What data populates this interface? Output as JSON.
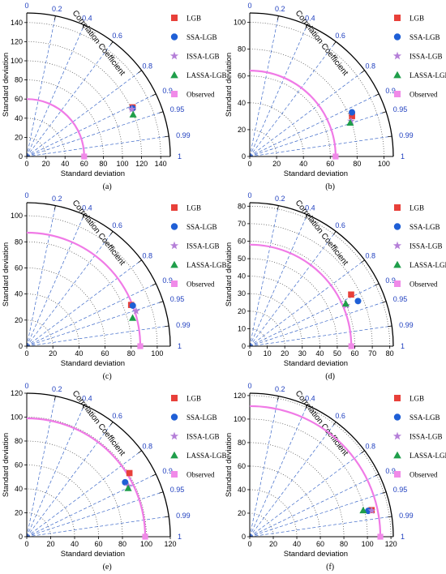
{
  "chart_data": [
    {
      "type": "taylor",
      "panel_label": "(a)",
      "xlabel": "Standard deviation",
      "ylabel": "Standard deviation",
      "radial_title": "Correlation Coefficient",
      "rmax": 150,
      "ticks": [
        0,
        20,
        40,
        60,
        80,
        100,
        120,
        140
      ],
      "correlation_ticks": [
        "0",
        "0.2",
        "0.4",
        "0.6",
        "0.8",
        "0.9",
        "0.95",
        "0.99",
        "1"
      ],
      "observed_std": 60,
      "series": [
        {
          "name": "LGB",
          "std": 122,
          "corr": 0.907
        },
        {
          "name": "SSA-LGB",
          "std": 121.5,
          "corr": 0.91
        },
        {
          "name": "ISSA-LGB",
          "std": 120.5,
          "corr": 0.912
        },
        {
          "name": "LASSA-LGB",
          "std": 119.5,
          "corr": 0.93
        },
        {
          "name": "Observed",
          "std": 60,
          "corr": 1
        }
      ]
    },
    {
      "type": "taylor",
      "panel_label": "(b)",
      "xlabel": "Standard deviation",
      "ylabel": "Standard deviation",
      "radial_title": "Correlation Coefficient",
      "rmax": 107,
      "ticks": [
        0,
        20,
        40,
        60,
        80,
        100
      ],
      "correlation_ticks": [
        "0",
        "0.2",
        "0.4",
        "0.6",
        "0.8",
        "0.9",
        "0.95",
        "0.99",
        "1"
      ],
      "observed_std": 64,
      "series": [
        {
          "name": "LGB",
          "std": 82,
          "corr": 0.93
        },
        {
          "name": "SSA-LGB",
          "std": 83,
          "corr": 0.918
        },
        {
          "name": "ISSA-LGB",
          "std": 80,
          "corr": 0.944
        },
        {
          "name": "LASSA-LGB",
          "std": 79,
          "corr": 0.948
        },
        {
          "name": "Observed",
          "std": 64,
          "corr": 1
        }
      ]
    },
    {
      "type": "taylor",
      "panel_label": "(c)",
      "xlabel": "Standard deviation",
      "ylabel": "Standard deviation",
      "radial_title": "Correlation Coefficient",
      "rmax": 110,
      "ticks": [
        0,
        20,
        40,
        60,
        80,
        100
      ],
      "correlation_ticks": [
        "0",
        "0.2",
        "0.4",
        "0.6",
        "0.8",
        "0.9",
        "0.95",
        "0.99",
        "1"
      ],
      "observed_std": 87,
      "series": [
        {
          "name": "LGB",
          "std": 86,
          "corr": 0.93
        },
        {
          "name": "SSA-LGB",
          "std": 87,
          "corr": 0.934
        },
        {
          "name": "ISSA-LGB",
          "std": 88,
          "corr": 0.952
        },
        {
          "name": "LASSA-LGB",
          "std": 84,
          "corr": 0.966
        },
        {
          "name": "Observed",
          "std": 87,
          "corr": 1
        }
      ]
    },
    {
      "type": "taylor",
      "panel_label": "(d)",
      "xlabel": "Standard deviation",
      "ylabel": "Standard deviation",
      "radial_title": "Correlation Coefficient",
      "rmax": 82,
      "ticks": [
        0,
        10,
        20,
        30,
        40,
        50,
        60,
        70,
        80
      ],
      "correlation_ticks": [
        "0",
        "0.2",
        "0.4",
        "0.6",
        "0.8",
        "0.9",
        "0.95",
        "0.99",
        "1"
      ],
      "observed_std": 58,
      "series": [
        {
          "name": "LGB",
          "std": 65,
          "corr": 0.891
        },
        {
          "name": "SSA-LGB",
          "std": 67,
          "corr": 0.923
        },
        {
          "name": "ISSA-LGB",
          "std": 60,
          "corr": 0.921
        },
        {
          "name": "LASSA-LGB",
          "std": 60,
          "corr": 0.914
        },
        {
          "name": "Observed",
          "std": 58,
          "corr": 1
        }
      ]
    },
    {
      "type": "taylor",
      "panel_label": "(e)",
      "xlabel": "Standard deviation",
      "ylabel": "Standard deviation",
      "radial_title": "Correlation Coefficient",
      "rmax": 120,
      "ticks": [
        0,
        20,
        40,
        60,
        80,
        100,
        120
      ],
      "correlation_ticks": [
        "0",
        "0.2",
        "0.4",
        "0.6",
        "0.8",
        "0.9",
        "0.95",
        "0.99",
        "1"
      ],
      "observed_std": 99,
      "series": [
        {
          "name": "LGB",
          "std": 101,
          "corr": 0.85
        },
        {
          "name": "SSA-LGB",
          "std": 94,
          "corr": 0.875
        },
        {
          "name": "ISSA-LGB",
          "std": 95,
          "corr": 0.895
        },
        {
          "name": "LASSA-LGB",
          "std": 94,
          "corr": 0.902
        },
        {
          "name": "Observed",
          "std": 99,
          "corr": 1
        }
      ]
    },
    {
      "type": "taylor",
      "panel_label": "(f)",
      "xlabel": "Standard deviation",
      "ylabel": "Standard deviation",
      "radial_title": "Correlation Coefficient",
      "rmax": 122,
      "ticks": [
        0,
        20,
        40,
        60,
        80,
        100,
        120
      ],
      "correlation_ticks": [
        "0",
        "0.2",
        "0.4",
        "0.6",
        "0.8",
        "0.9",
        "0.95",
        "0.99",
        "1"
      ],
      "observed_std": 111,
      "series": [
        {
          "name": "LGB",
          "std": 106,
          "corr": 0.977
        },
        {
          "name": "SSA-LGB",
          "std": 103,
          "corr": 0.977
        },
        {
          "name": "ISSA-LGB",
          "std": 106,
          "corr": 0.978
        },
        {
          "name": "LASSA-LGB",
          "std": 99,
          "corr": 0.974
        },
        {
          "name": "Observed",
          "std": 111,
          "corr": 1
        }
      ]
    }
  ],
  "colors": {
    "LGB": "#e8403a",
    "SSA-LGB": "#1f5fd6",
    "ISSA-LGB": "#b57fd8",
    "LASSA-LGB": "#1f9e4a",
    "Observed": "#f08ae8",
    "corr_lines": "#3c68c9",
    "grid": "#444444",
    "observed_arc": "#f07ae6"
  },
  "markers": {
    "LGB": "square",
    "SSA-LGB": "circle",
    "ISSA-LGB": "star",
    "LASSA-LGB": "triangle",
    "Observed": "square"
  }
}
